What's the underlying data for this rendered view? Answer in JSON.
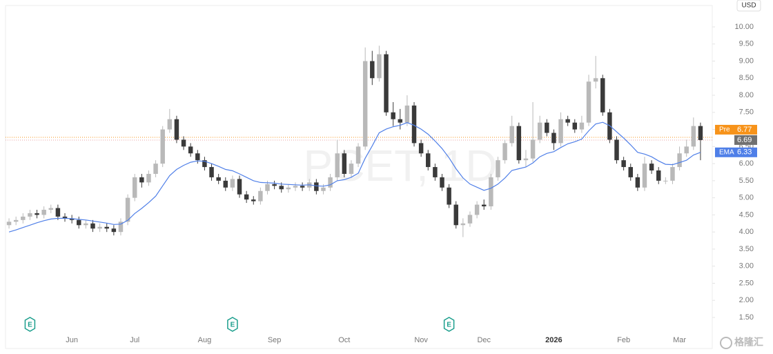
{
  "chart_data": {
    "type": "candlestick",
    "watermark": "PCET, 1D",
    "currency": "USD",
    "logo_text": "格隆汇",
    "categories": [
      null,
      null,
      null,
      null,
      null,
      null,
      null,
      null,
      null,
      "Jun",
      null,
      null,
      null,
      null,
      null,
      null,
      null,
      null,
      "Jul",
      null,
      null,
      null,
      null,
      null,
      null,
      null,
      null,
      null,
      "Aug",
      null,
      null,
      null,
      null,
      null,
      null,
      null,
      null,
      null,
      "Sep",
      null,
      null,
      null,
      null,
      null,
      null,
      null,
      null,
      null,
      "Oct",
      null,
      null,
      null,
      null,
      null,
      null,
      null,
      null,
      null,
      null,
      "Nov",
      null,
      null,
      null,
      null,
      null,
      null,
      null,
      null,
      "Dec",
      null,
      null,
      null,
      null,
      null,
      null,
      null,
      null,
      null,
      "2026",
      null,
      null,
      null,
      null,
      null,
      null,
      null,
      null,
      null,
      "Feb",
      null,
      null,
      null,
      null,
      null,
      null,
      null,
      "Mar",
      null,
      null,
      null
    ],
    "open": [
      4.2,
      4.3,
      4.35,
      4.45,
      4.55,
      4.5,
      4.65,
      4.7,
      4.45,
      4.4,
      4.35,
      4.2,
      4.25,
      4.1,
      4.15,
      4.1,
      4.0,
      4.3,
      5.0,
      5.6,
      5.45,
      5.7,
      6.0,
      7.0,
      7.3,
      6.7,
      6.5,
      6.3,
      6.1,
      5.9,
      5.6,
      5.5,
      5.3,
      5.55,
      5.1,
      4.95,
      4.9,
      5.2,
      5.4,
      5.35,
      5.25,
      5.3,
      5.35,
      5.3,
      5.45,
      5.2,
      5.3,
      5.6,
      6.3,
      5.7,
      6.0,
      6.5,
      9.0,
      8.5,
      9.2,
      7.5,
      7.3,
      7.2,
      7.7,
      6.6,
      6.3,
      5.9,
      5.6,
      5.3,
      4.8,
      4.2,
      4.25,
      4.5,
      4.8,
      4.75,
      5.6,
      6.1,
      6.6,
      7.1,
      6.1,
      6.15,
      6.7,
      7.2,
      6.9,
      6.6,
      7.3,
      7.2,
      7.0,
      7.2,
      8.4,
      8.5,
      7.5,
      6.7,
      6.1,
      5.9,
      5.6,
      5.3,
      6.0,
      5.8,
      5.5,
      5.5,
      5.9,
      6.3,
      6.5,
      7.1
    ],
    "high": [
      4.4,
      4.45,
      4.55,
      4.65,
      4.65,
      4.75,
      4.8,
      4.8,
      4.55,
      4.5,
      4.45,
      4.35,
      4.35,
      4.25,
      4.25,
      4.2,
      4.4,
      5.1,
      5.7,
      5.7,
      5.8,
      6.1,
      7.1,
      7.6,
      7.4,
      6.8,
      6.6,
      6.4,
      6.2,
      6.0,
      5.7,
      5.6,
      5.65,
      5.65,
      5.2,
      5.05,
      5.3,
      5.5,
      5.5,
      5.45,
      5.4,
      5.45,
      5.45,
      5.55,
      5.55,
      5.4,
      5.7,
      6.7,
      6.4,
      6.1,
      6.6,
      9.4,
      9.3,
      9.45,
      9.3,
      7.8,
      7.6,
      8.0,
      7.8,
      6.7,
      6.4,
      6.0,
      5.7,
      5.4,
      4.9,
      4.4,
      4.6,
      4.9,
      4.95,
      5.7,
      6.2,
      6.7,
      7.4,
      7.2,
      6.4,
      7.8,
      7.4,
      7.3,
      7.0,
      7.5,
      7.4,
      7.3,
      7.4,
      8.6,
      9.15,
      8.6,
      7.6,
      6.8,
      6.2,
      6.0,
      5.7,
      6.2,
      6.1,
      5.9,
      5.6,
      6.0,
      6.5,
      6.7,
      7.35,
      7.2
    ],
    "low": [
      4.1,
      4.2,
      4.25,
      4.35,
      4.4,
      4.4,
      4.55,
      4.35,
      4.3,
      4.25,
      4.1,
      4.1,
      4.0,
      4.0,
      4.0,
      3.9,
      3.9,
      4.2,
      4.9,
      5.3,
      5.35,
      5.6,
      5.9,
      6.9,
      6.6,
      6.4,
      6.2,
      6.0,
      5.8,
      5.5,
      5.4,
      5.2,
      5.2,
      5.0,
      4.85,
      4.8,
      4.8,
      5.1,
      5.25,
      5.15,
      5.15,
      5.2,
      5.2,
      5.2,
      5.1,
      5.1,
      5.2,
      5.5,
      5.6,
      5.6,
      5.9,
      6.4,
      8.3,
      8.4,
      7.4,
      7.1,
      7.0,
      7.1,
      6.5,
      6.2,
      5.8,
      5.5,
      5.2,
      4.7,
      4.1,
      3.85,
      4.15,
      4.4,
      4.65,
      4.65,
      5.5,
      6.0,
      6.5,
      6.0,
      5.9,
      6.05,
      6.6,
      6.8,
      6.4,
      6.5,
      7.1,
      6.9,
      6.9,
      7.1,
      8.2,
      7.4,
      6.6,
      6.0,
      5.8,
      5.5,
      5.2,
      5.2,
      5.7,
      5.4,
      5.4,
      5.4,
      5.8,
      6.2,
      6.4,
      6.1
    ],
    "close": [
      4.3,
      4.35,
      4.45,
      4.55,
      4.5,
      4.65,
      4.7,
      4.45,
      4.4,
      4.35,
      4.2,
      4.25,
      4.1,
      4.15,
      4.1,
      4.0,
      4.3,
      5.0,
      5.6,
      5.45,
      5.7,
      6.0,
      7.0,
      7.3,
      6.7,
      6.5,
      6.3,
      6.1,
      5.9,
      5.6,
      5.5,
      5.3,
      5.55,
      5.1,
      4.95,
      4.9,
      5.2,
      5.4,
      5.35,
      5.25,
      5.3,
      5.35,
      5.3,
      5.45,
      5.2,
      5.3,
      5.6,
      6.3,
      5.7,
      6.0,
      6.5,
      9.0,
      8.5,
      9.2,
      7.5,
      7.3,
      7.2,
      7.7,
      6.6,
      6.3,
      5.9,
      5.6,
      5.3,
      4.8,
      4.2,
      4.25,
      4.5,
      4.8,
      4.75,
      5.6,
      6.1,
      6.6,
      7.1,
      6.1,
      6.15,
      6.7,
      7.2,
      6.9,
      6.6,
      7.3,
      7.2,
      7.0,
      7.2,
      8.4,
      8.5,
      7.5,
      6.7,
      6.1,
      5.9,
      5.6,
      5.3,
      6.0,
      5.8,
      5.5,
      5.5,
      5.9,
      6.3,
      6.5,
      7.1,
      6.69
    ],
    "up_color": "#b9b9b9",
    "down_color": "#3a3a3a",
    "last_color": "#707070",
    "ema": {
      "name": "EMA",
      "color": "#4f7fe8",
      "values": [
        4.0,
        4.06,
        4.13,
        4.2,
        4.27,
        4.33,
        4.38,
        4.4,
        4.4,
        4.39,
        4.37,
        4.35,
        4.32,
        4.29,
        4.26,
        4.22,
        4.23,
        4.34,
        4.54,
        4.69,
        4.86,
        5.05,
        5.35,
        5.65,
        5.83,
        5.95,
        6.04,
        6.08,
        6.07,
        6.0,
        5.92,
        5.83,
        5.79,
        5.7,
        5.6,
        5.5,
        5.45,
        5.44,
        5.43,
        5.4,
        5.39,
        5.38,
        5.37,
        5.38,
        5.35,
        5.34,
        5.38,
        5.5,
        5.53,
        5.6,
        5.72,
        6.16,
        6.52,
        6.9,
        7.01,
        7.08,
        7.12,
        7.2,
        7.12,
        7.01,
        6.86,
        6.66,
        6.44,
        6.17,
        5.85,
        5.58,
        5.4,
        5.31,
        5.22,
        5.28,
        5.4,
        5.58,
        5.8,
        5.85,
        5.9,
        6.02,
        6.2,
        6.3,
        6.35,
        6.47,
        6.58,
        6.64,
        6.72,
        6.96,
        7.16,
        7.21,
        7.11,
        6.93,
        6.75,
        6.55,
        6.33,
        6.28,
        6.2,
        6.08,
        5.98,
        5.97,
        6.03,
        6.1,
        6.25,
        6.33
      ]
    },
    "pre_market": {
      "name": "Pre",
      "value": 6.77,
      "color": "#f7931a"
    },
    "events": [
      {
        "category_index": 3,
        "label": "E"
      },
      {
        "category_index": 32,
        "label": "E"
      },
      {
        "category_index": 63,
        "label": "E"
      }
    ],
    "events_color": "#1a9e8c",
    "ylim": [
      1,
      10.4
    ],
    "yticks": [
      {
        "value": 1.5,
        "label": "1.50"
      },
      {
        "value": 2,
        "label": "2.00"
      },
      {
        "value": 2.5,
        "label": "2.50"
      },
      {
        "value": 3,
        "label": "3.00"
      },
      {
        "value": 3.5,
        "label": "3.50"
      },
      {
        "value": 4,
        "label": "4.00"
      },
      {
        "value": 4.5,
        "label": "4.50"
      },
      {
        "value": 5,
        "label": "5.00"
      },
      {
        "value": 5.5,
        "label": "5.50"
      },
      {
        "value": 6,
        "label": "6.00"
      },
      {
        "value": 6.5,
        "label": "6.50"
      },
      {
        "value": 7,
        "label": "7.00"
      },
      {
        "value": 7.5,
        "label": "7.50"
      },
      {
        "value": 8,
        "label": "8.00"
      },
      {
        "value": 8.5,
        "label": "8.50"
      },
      {
        "value": 9,
        "label": "9.00"
      },
      {
        "value": 9.5,
        "label": "9.50"
      },
      {
        "value": 10,
        "label": "10.00"
      }
    ],
    "bold_categories": [
      "2026"
    ]
  }
}
